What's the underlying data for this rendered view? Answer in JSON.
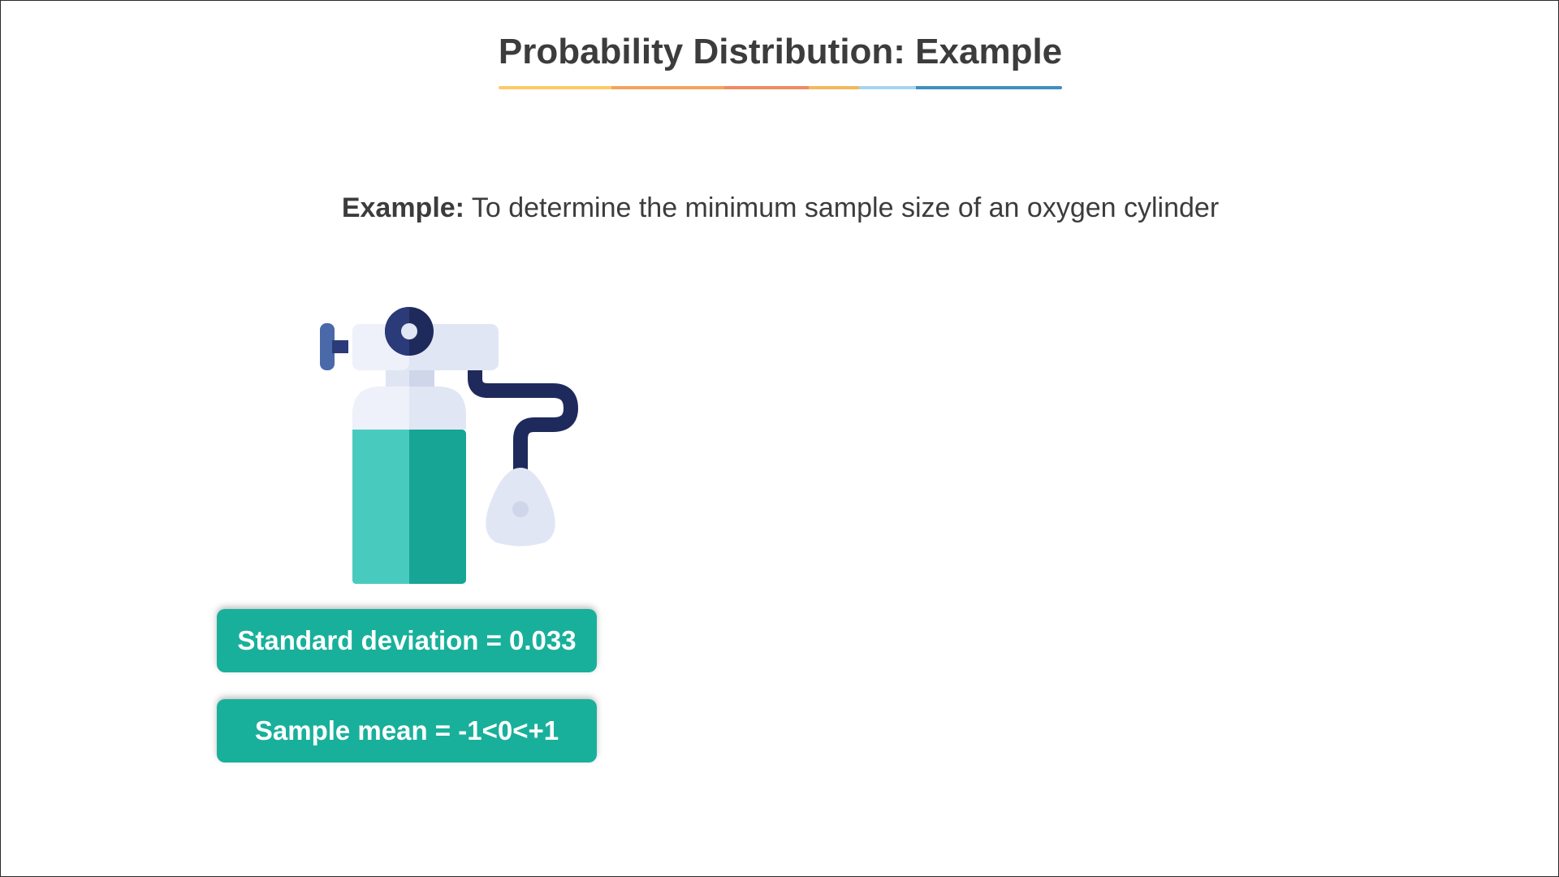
{
  "slide": {
    "title": "Probability Distribution: Example",
    "underline_colors": [
      "#ffc966",
      "#f4a35c",
      "#ef8a65",
      "#f5b85a",
      "#a6d4ef",
      "#3e8fbf"
    ],
    "subtitle_lead": "Example:",
    "subtitle_text": " To determine the minimum sample size of an oxygen cylinder",
    "illustration_icon": "oxygen-cylinder-icon",
    "stats": {
      "std_dev": "Standard deviation = 0.033",
      "sample_mean": "Sample mean = -1<0<+1"
    },
    "colors": {
      "accent_teal": "#19b09b",
      "cylinder_light": "#48cbbe",
      "cylinder_dark": "#17a595",
      "navy": "#1f2a5c",
      "pale_blue": "#e1e6f5"
    }
  }
}
